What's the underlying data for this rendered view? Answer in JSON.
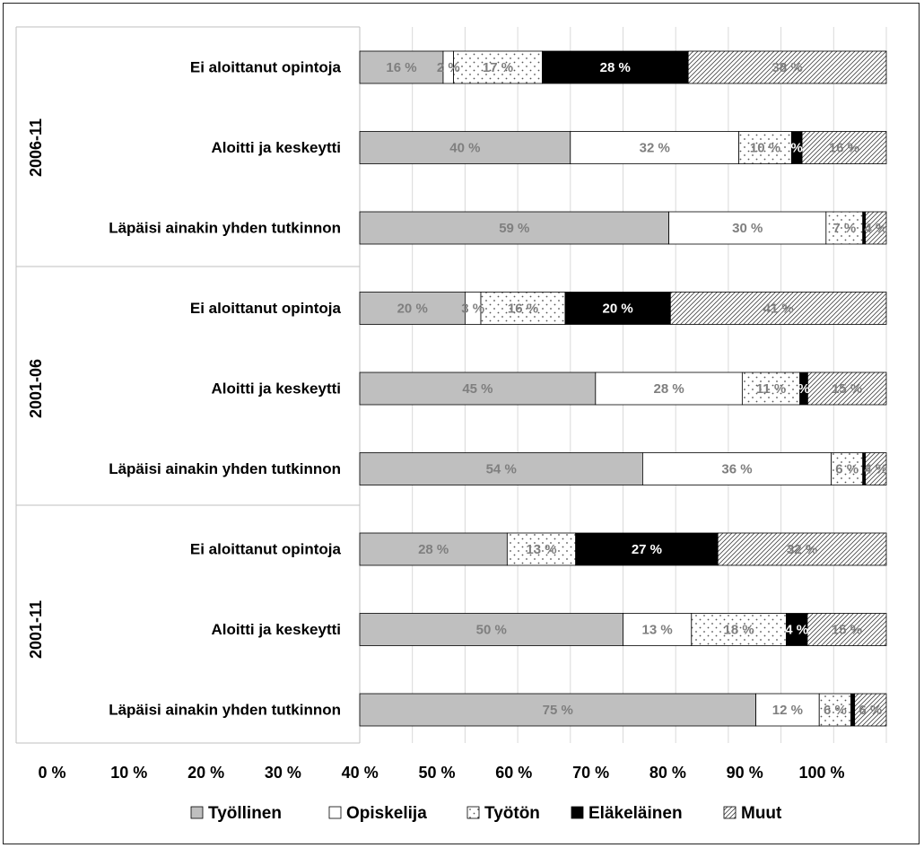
{
  "chart_data": {
    "type": "bar",
    "orientation": "horizontal",
    "stacked": "percent",
    "title": "",
    "xlabel": "",
    "ylabel": "",
    "xlim": [
      0,
      100
    ],
    "x_ticks": [
      "0 %",
      "10 %",
      "20 %",
      "30 %",
      "40 %",
      "50 %",
      "60 %",
      "70 %",
      "80 %",
      "90 %",
      "100 %"
    ],
    "grid": "vertical",
    "legend_position": "bottom",
    "groups": [
      {
        "label": "2006-11",
        "rows": [
          {
            "label": "Ei aloittanut opintoja",
            "values": [
              16,
              2,
              17,
              28,
              38
            ],
            "labels": [
              "16 %",
              "2 %",
              "17 %",
              "28 %",
              "38 %"
            ]
          },
          {
            "label": "Aloitti ja keskeytti",
            "values": [
              40,
              32,
              10,
              2,
              16
            ],
            "labels": [
              "40 %",
              "32 %",
              "10 %",
              "%",
              "16 %"
            ]
          },
          {
            "label": "Läpäisi ainakin yhden tutkinnon",
            "values": [
              59,
              30,
              7,
              0.5,
              4
            ],
            "labels": [
              "59 %",
              "30 %",
              "7 %",
              "",
              "4 %"
            ]
          }
        ]
      },
      {
        "label": "2001-06",
        "rows": [
          {
            "label": "Ei aloittanut opintoja",
            "values": [
              20,
              3,
              16,
              20,
              41
            ],
            "labels": [
              "20 %",
              "3 %",
              "16 %",
              "20 %",
              "41 %"
            ]
          },
          {
            "label": "Aloitti ja keskeytti",
            "values": [
              45,
              28,
              11,
              1.5,
              15
            ],
            "labels": [
              "45 %",
              "28 %",
              "11 %",
              "%",
              "15 %"
            ]
          },
          {
            "label": "Läpäisi ainakin yhden tutkinnon",
            "values": [
              54,
              36,
              6,
              0.5,
              4
            ],
            "labels": [
              "54 %",
              "36 %",
              "6 %",
              "",
              "4 %"
            ]
          }
        ]
      },
      {
        "label": "2001-11",
        "rows": [
          {
            "label": "Ei aloittanut opintoja",
            "values": [
              28,
              0,
              13,
              27,
              32
            ],
            "labels": [
              "28 %",
              "",
              "13 %",
              "27 %",
              "32 %"
            ]
          },
          {
            "label": "Aloitti ja keskeytti",
            "values": [
              50,
              13,
              18,
              4,
              15
            ],
            "labels": [
              "50 %",
              "13 %",
              "18 %",
              "4 %",
              "15 %"
            ]
          },
          {
            "label": "Läpäisi ainakin yhden tutkinnon",
            "values": [
              75,
              12,
              6,
              0.7,
              6
            ],
            "labels": [
              "75 %",
              "12 %",
              "6 %",
              "",
              "6 %"
            ]
          }
        ]
      }
    ],
    "series": [
      {
        "name": "Työllinen",
        "color": "#bfbfbf",
        "pattern": "solid",
        "label_color": "#7f7f7f"
      },
      {
        "name": "Opiskelija",
        "color": "#ffffff",
        "pattern": "solid",
        "label_color": "#7f7f7f"
      },
      {
        "name": "Työtön",
        "color": "#ffffff",
        "pattern": "dots",
        "label_color": "#7f7f7f"
      },
      {
        "name": "Eläkeläinen",
        "color": "#000000",
        "pattern": "solid",
        "label_color": "#ffffff"
      },
      {
        "name": "Muut",
        "color": "#ffffff",
        "pattern": "diagonal",
        "label_color": "#7f7f7f"
      }
    ]
  }
}
